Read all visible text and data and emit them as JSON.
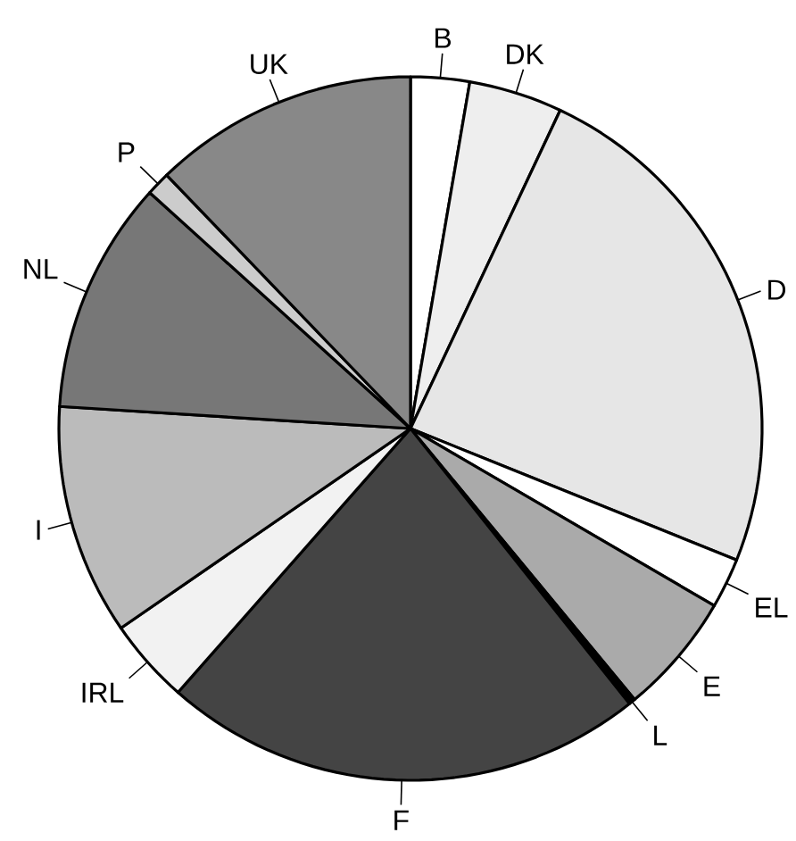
{
  "chart_data": {
    "type": "pie",
    "categories": [
      "B",
      "DK",
      "D",
      "EL",
      "E",
      "L",
      "F",
      "IRL",
      "I",
      "NL",
      "P",
      "UK"
    ],
    "values": [
      2.7,
      4.3,
      24.1,
      2.3,
      5.6,
      0.3,
      22.2,
      3.9,
      10.6,
      10.7,
      1.1,
      12.2
    ],
    "colors": [
      "#ffffff",
      "#eeeeee",
      "#e6e6e6",
      "#ffffff",
      "#aaaaaa",
      "#000000",
      "#444444",
      "#f2f2f2",
      "#bbbbbb",
      "#777777",
      "#cccccc",
      "#888888"
    ]
  }
}
